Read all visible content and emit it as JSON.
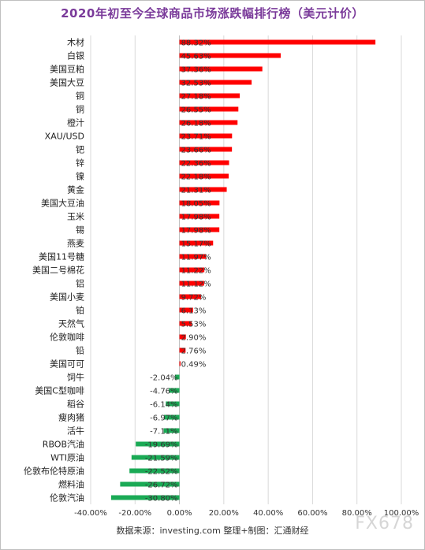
{
  "chart_data": {
    "type": "bar",
    "orientation": "horizontal",
    "title": "2020年初至今全球商品市场涨跌幅排行榜（美元计价）",
    "categories": [
      "木材",
      "白银",
      "美国豆粕",
      "美国大豆",
      "铜",
      "铜",
      "橙汁",
      "XAU/USD",
      "钯",
      "锌",
      "镍",
      "黄金",
      "美国大豆油",
      "玉米",
      "锡",
      "燕麦",
      "美国11号糖",
      "美国二号棉花",
      "铝",
      "美国小麦",
      "铂",
      "天然气",
      "伦敦咖啡",
      "铅",
      "美国可可",
      "饲牛",
      "美国C型咖啡",
      "稻谷",
      "瘦肉猪",
      "活牛",
      "RBOB汽油",
      "WTI原油",
      "伦敦布伦特原油",
      "燃料油",
      "伦敦汽油"
    ],
    "values": [
      88.32,
      45.63,
      37.36,
      32.53,
      27.18,
      26.55,
      26.18,
      23.71,
      23.66,
      22.36,
      22.18,
      21.31,
      18.05,
      17.98,
      17.98,
      15.17,
      11.97,
      11.22,
      11.12,
      9.72,
      6.13,
      5.53,
      2.9,
      2.76,
      0.49,
      -2.04,
      -4.76,
      -6.14,
      -6.97,
      -7.11,
      -19.69,
      -21.59,
      -22.52,
      -26.72,
      -30.8
    ],
    "data_labels": [
      "88.32%",
      "45.63%",
      "37.36%",
      "32.53%",
      "27.18%",
      "26.55%",
      "26.18%",
      "23.71%",
      "23.66%",
      "22.36%",
      "22.18%",
      "21.31%",
      "18.05%",
      "17.98%",
      "17.98%",
      "15.17%",
      "11.97%",
      "11.22%",
      "11.12%",
      "9.72%",
      "6.13%",
      "5.53%",
      "2.90%",
      "2.76%",
      "0.49%",
      "-2.04%",
      "-4.76%",
      "-6.14%",
      "-6.97%",
      "-7.11%",
      "-19.69%",
      "-21.59%",
      "-22.52%",
      "-26.72%",
      "-30.80%"
    ],
    "xlim": [
      -40,
      100
    ],
    "x_ticks": [
      -40,
      -20,
      0,
      20,
      40,
      60,
      80,
      100
    ],
    "x_tick_labels": [
      "-40.00%",
      "-20.00%",
      "0.00%",
      "20.00%",
      "40.00%",
      "60.00%",
      "80.00%",
      "100.00%"
    ],
    "grid": true,
    "colors": {
      "positive": "#ff0000",
      "negative": "#1aaa55",
      "grid": "#d9d9d9",
      "title": "#7a3a9a"
    }
  },
  "source_text": "数据来源：investing.com 整理+制图：汇通财经",
  "watermark": "FX678"
}
